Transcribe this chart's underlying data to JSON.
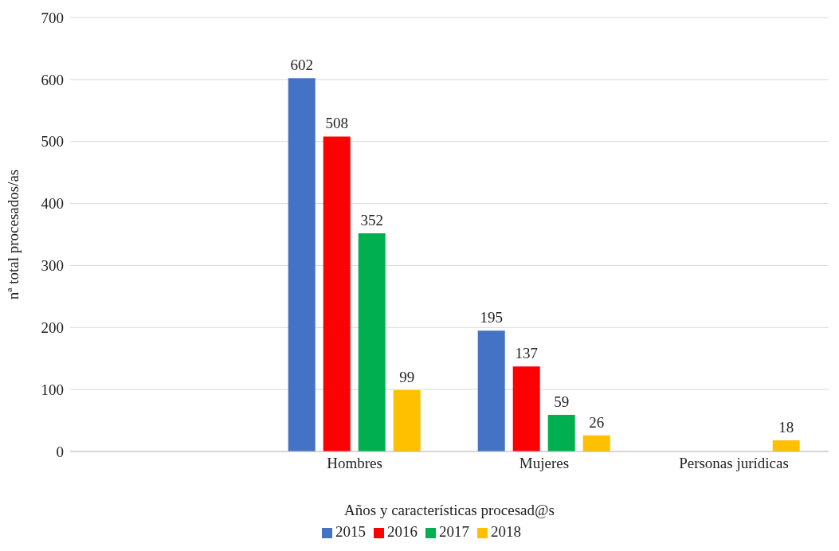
{
  "chart_data": {
    "type": "bar",
    "xlabel": "Años y características procesad@s",
    "ylabel": "nª total procesados/as",
    "categories": [
      null,
      "Hombres",
      "Mujeres",
      "Personas jurídicas"
    ],
    "series": [
      {
        "name": "2015",
        "color": "#4472c4",
        "values": [
          null,
          602,
          195,
          null
        ]
      },
      {
        "name": "2016",
        "color": "#ff0000",
        "values": [
          null,
          508,
          137,
          null
        ]
      },
      {
        "name": "2017",
        "color": "#00b050",
        "values": [
          null,
          352,
          59,
          null
        ]
      },
      {
        "name": "2018",
        "color": "#ffc000",
        "values": [
          null,
          99,
          26,
          18
        ]
      }
    ],
    "ylim": [
      0,
      700
    ],
    "yticks": [
      0,
      100,
      200,
      300,
      400,
      500,
      600,
      700
    ],
    "grid": "y",
    "legend": "bottom",
    "data_labels": true
  }
}
